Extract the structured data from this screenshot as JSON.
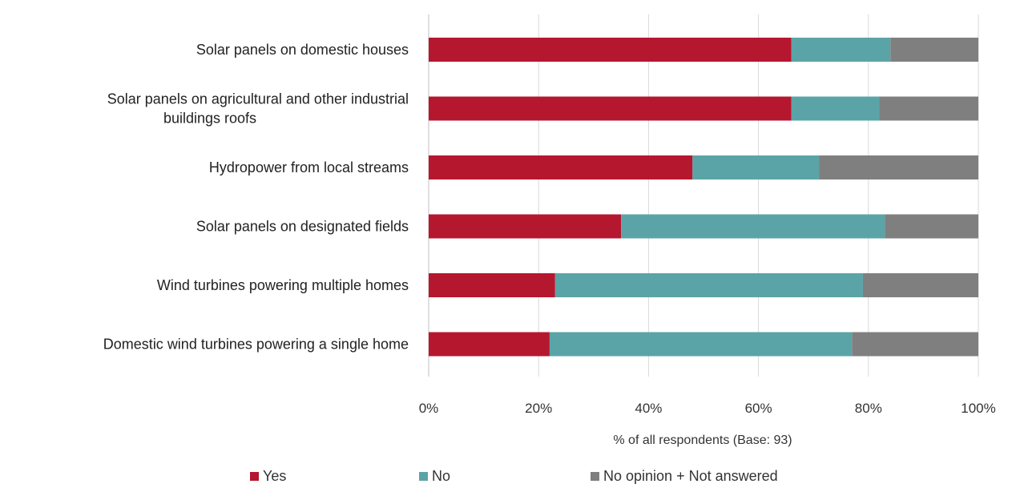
{
  "chart_data": {
    "type": "bar",
    "orientation": "horizontal",
    "stacked": true,
    "categories": [
      "Solar panels on domestic houses",
      "Solar panels on agricultural and other industrial buildings roofs",
      "Hydropower from local streams",
      "Solar panels on designated fields",
      "Wind turbines powering multiple homes",
      "Domestic wind turbines powering a single home"
    ],
    "series": [
      {
        "name": "Yes",
        "color": "#b5172f",
        "values": [
          66,
          66,
          48,
          35,
          23,
          22
        ]
      },
      {
        "name": "No",
        "color": "#5aa4a7",
        "values": [
          18,
          16,
          23,
          48,
          56,
          55
        ]
      },
      {
        "name": "No opinion + Not answered",
        "color": "#7f7f7f",
        "values": [
          16,
          18,
          29,
          17,
          21,
          23
        ]
      }
    ],
    "xlabel": "% of all respondents (Base: 93)",
    "xlim": [
      0,
      100
    ],
    "xticks": [
      0,
      20,
      40,
      60,
      80,
      100
    ],
    "xtick_labels": [
      "0%",
      "20%",
      "40%",
      "60%",
      "80%",
      "100%"
    ],
    "grid": "vertical",
    "legend": "bottom"
  }
}
